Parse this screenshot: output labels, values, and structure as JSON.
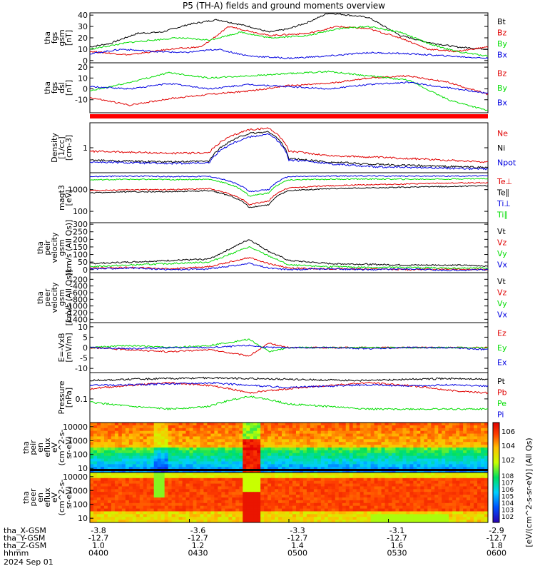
{
  "title": "P5 (TH-A) fields and ground moments overview",
  "colors": {
    "black": "#000000",
    "red": "#e00000",
    "green": "#00dd00",
    "blue": "#0000e0"
  },
  "chart_data": [
    {
      "type": "line",
      "id": "fgs-gsm",
      "ylabel": [
        "tha",
        "fgs",
        "gsm",
        "[nT]"
      ],
      "yticks": [
        "40",
        "30",
        "20",
        "10",
        "0"
      ],
      "ylim": [
        -2,
        42
      ],
      "series": [
        {
          "name": "Bt",
          "color": "black",
          "x": [
            0,
            5,
            12,
            18,
            25,
            32,
            40,
            45,
            50,
            55,
            60,
            70,
            78,
            85,
            92,
            100
          ],
          "y": [
            12,
            15,
            24,
            25,
            32,
            36,
            30,
            25,
            28,
            34,
            42,
            38,
            22,
            16,
            12,
            10
          ]
        },
        {
          "name": "Bz",
          "color": "red",
          "x": [
            0,
            10,
            20,
            28,
            35,
            45,
            55,
            62,
            70,
            78,
            85,
            92,
            100
          ],
          "y": [
            8,
            5,
            10,
            12,
            30,
            22,
            24,
            30,
            28,
            20,
            10,
            8,
            12
          ]
        },
        {
          "name": "By",
          "color": "green",
          "x": [
            0,
            10,
            22,
            30,
            38,
            45,
            55,
            62,
            70,
            78,
            85,
            92,
            100
          ],
          "y": [
            10,
            16,
            20,
            18,
            25,
            20,
            22,
            28,
            30,
            25,
            15,
            8,
            4
          ]
        },
        {
          "name": "Bx",
          "color": "blue",
          "x": [
            0,
            8,
            16,
            24,
            32,
            40,
            50,
            60,
            70,
            80,
            90,
            100
          ],
          "y": [
            6,
            10,
            8,
            7,
            10,
            4,
            2,
            4,
            7,
            6,
            4,
            2
          ]
        }
      ]
    },
    {
      "type": "line",
      "id": "fgs-dsl",
      "ylabel": [
        "tha",
        "fgs",
        "dsl",
        "[nT]"
      ],
      "yticks": [
        "20",
        "10",
        "0",
        "-10"
      ],
      "ylim": [
        -22,
        24
      ],
      "series": [
        {
          "name": "Bz",
          "color": "red",
          "x": [
            0,
            10,
            20,
            30,
            40,
            50,
            60,
            70,
            80,
            90,
            100
          ],
          "y": [
            -8,
            -15,
            -9,
            -5,
            -2,
            3,
            5,
            10,
            12,
            6,
            -5
          ]
        },
        {
          "name": "By",
          "color": "green",
          "x": [
            0,
            10,
            20,
            30,
            40,
            50,
            60,
            70,
            80,
            90,
            100
          ],
          "y": [
            -2,
            6,
            15,
            10,
            12,
            14,
            16,
            12,
            8,
            -10,
            -20
          ]
        },
        {
          "name": "Bx",
          "color": "blue",
          "x": [
            0,
            10,
            20,
            30,
            40,
            50,
            60,
            70,
            80,
            90,
            100
          ],
          "y": [
            2,
            0,
            5,
            0,
            4,
            2,
            0,
            4,
            6,
            1,
            -4
          ]
        }
      ]
    },
    {
      "type": "line",
      "id": "density",
      "ylabel": [
        "Density",
        "[1/cc]",
        "[cm-3]"
      ],
      "yticks": [
        "1"
      ],
      "scale": "log",
      "ylim": [
        0.2,
        5
      ],
      "series": [
        {
          "name": "Ne",
          "color": "red",
          "x": [
            0,
            10,
            20,
            30,
            40,
            45,
            50,
            55,
            60,
            70,
            80,
            90,
            100
          ],
          "y": [
            0.8,
            0.75,
            0.7,
            0.72,
            3.2,
            3.5,
            0.8,
            0.7,
            0.6,
            0.55,
            0.5,
            0.45,
            0.4
          ]
        },
        {
          "name": "Ni",
          "color": "black",
          "x": [
            0,
            10,
            20,
            30,
            40,
            45,
            50,
            55,
            60,
            70,
            80,
            90,
            100
          ],
          "y": [
            0.45,
            0.42,
            0.4,
            0.42,
            2.5,
            2.8,
            0.5,
            0.45,
            0.4,
            0.35,
            0.32,
            0.3,
            0.28
          ]
        },
        {
          "name": "Npot",
          "color": "blue",
          "x": [
            0,
            10,
            20,
            30,
            40,
            45,
            50,
            55,
            60,
            70,
            80,
            90,
            100
          ],
          "y": [
            0.4,
            0.38,
            0.36,
            0.38,
            2.0,
            2.4,
            0.45,
            0.42,
            0.36,
            0.3,
            0.28,
            0.27,
            0.25
          ]
        }
      ]
    },
    {
      "type": "line",
      "id": "temperature",
      "ylabel": [
        "magt3",
        "[eV]"
      ],
      "yticks": [
        "1000",
        "100"
      ],
      "scale": "log",
      "ylim": [
        30,
        6000
      ],
      "series": [
        {
          "name": "Te⊥",
          "color": "red",
          "x": [
            0,
            10,
            20,
            30,
            40,
            45,
            50,
            60,
            70,
            80,
            90,
            100
          ],
          "y": [
            900,
            1000,
            1000,
            1100,
            200,
            300,
            1200,
            1500,
            1700,
            1800,
            2000,
            2100
          ]
        },
        {
          "name": "Te∥",
          "color": "black",
          "x": [
            0,
            10,
            20,
            30,
            40,
            45,
            50,
            60,
            70,
            80,
            90,
            100
          ],
          "y": [
            700,
            800,
            800,
            900,
            150,
            200,
            900,
            1100,
            1200,
            1300,
            1400,
            1500
          ]
        },
        {
          "name": "Ti⊥",
          "color": "blue",
          "x": [
            0,
            10,
            20,
            30,
            40,
            45,
            50,
            60,
            70,
            80,
            90,
            100
          ],
          "y": [
            4000,
            4200,
            4000,
            4100,
            800,
            1000,
            4000,
            4200,
            4300,
            4200,
            4200,
            4300
          ]
        },
        {
          "name": "Ti∥",
          "color": "green",
          "x": [
            0,
            10,
            20,
            30,
            40,
            45,
            50,
            60,
            70,
            80,
            90,
            100
          ],
          "y": [
            2800,
            3000,
            2900,
            3000,
            500,
            700,
            2800,
            3000,
            3100,
            3000,
            3100,
            3200
          ]
        }
      ]
    },
    {
      "type": "line",
      "id": "peir-velocity",
      "ylabel": [
        "tha",
        "peir",
        "velocity",
        "gsm",
        "[km/s (All Qs)]"
      ],
      "yticks": [
        "300",
        "250",
        "200",
        "150",
        "100",
        "50",
        "0"
      ],
      "ylim": [
        -20,
        310
      ],
      "series": [
        {
          "name": "Vt",
          "color": "black",
          "x": [
            0,
            10,
            20,
            30,
            40,
            45,
            50,
            60,
            70,
            80,
            90,
            100
          ],
          "y": [
            40,
            50,
            60,
            70,
            200,
            120,
            60,
            40,
            35,
            30,
            30,
            25
          ]
        },
        {
          "name": "Vz",
          "color": "red",
          "x": [
            0,
            10,
            20,
            30,
            40,
            45,
            50,
            60,
            70,
            80,
            90,
            100
          ],
          "y": [
            10,
            15,
            5,
            20,
            80,
            40,
            10,
            5,
            5,
            0,
            5,
            0
          ]
        },
        {
          "name": "Vy",
          "color": "green",
          "x": [
            0,
            10,
            20,
            30,
            40,
            45,
            50,
            60,
            70,
            80,
            90,
            100
          ],
          "y": [
            20,
            30,
            40,
            50,
            150,
            90,
            30,
            20,
            15,
            15,
            10,
            10
          ]
        },
        {
          "name": "Vx",
          "color": "blue",
          "x": [
            0,
            10,
            20,
            30,
            40,
            45,
            50,
            60,
            70,
            80,
            90,
            100
          ],
          "y": [
            5,
            10,
            0,
            5,
            40,
            10,
            0,
            5,
            0,
            5,
            -5,
            0
          ]
        }
      ]
    },
    {
      "type": "line",
      "id": "peer-velocity",
      "ylabel": [
        "tha",
        "peer",
        "velocity",
        "gsm",
        "[km/s (All Qs)]"
      ],
      "yticks": [
        "-200",
        "-400",
        "-600",
        "-800",
        "-1000",
        "-1200",
        "-1400"
      ],
      "ylim": [
        -1500,
        0
      ],
      "series": [
        {
          "name": "Vt",
          "color": "black",
          "x": [],
          "y": []
        },
        {
          "name": "Vz",
          "color": "red",
          "x": [],
          "y": []
        },
        {
          "name": "Vy",
          "color": "green",
          "x": [],
          "y": []
        },
        {
          "name": "Vx",
          "color": "blue",
          "x": [],
          "y": []
        }
      ]
    },
    {
      "type": "line",
      "id": "efield",
      "ylabel": [
        "E=-VxB",
        "[mV/m]"
      ],
      "yticks": [
        "10",
        "5",
        "0",
        "-5",
        "-10"
      ],
      "ylim": [
        -12,
        12
      ],
      "series": [
        {
          "name": "Ez",
          "color": "red",
          "x": [
            0,
            10,
            20,
            30,
            40,
            45,
            50,
            60,
            70,
            80,
            90,
            100
          ],
          "y": [
            0,
            -1,
            -2,
            -1,
            -4,
            2,
            0,
            0,
            0,
            0,
            0,
            0
          ]
        },
        {
          "name": "Ey",
          "color": "green",
          "x": [
            0,
            10,
            20,
            30,
            40,
            45,
            50,
            60,
            70,
            80,
            90,
            100
          ],
          "y": [
            0,
            1,
            0,
            1,
            4,
            -2,
            0,
            0,
            0,
            0,
            0,
            0
          ]
        },
        {
          "name": "Ex",
          "color": "blue",
          "x": [
            0,
            10,
            20,
            30,
            40,
            45,
            50,
            60,
            70,
            80,
            90,
            100
          ],
          "y": [
            0,
            -0.5,
            0,
            0,
            1,
            0,
            0,
            0,
            -0.5,
            0,
            0,
            -1
          ]
        }
      ]
    },
    {
      "type": "line",
      "id": "pressure",
      "ylabel": [
        "Pressure",
        "[nPa]"
      ],
      "yticks": [
        "0.1"
      ],
      "scale": "log",
      "ylim": [
        0.02,
        0.6
      ],
      "series": [
        {
          "name": "Pt",
          "color": "black",
          "x": [
            0,
            10,
            20,
            30,
            40,
            50,
            60,
            70,
            80,
            90,
            100
          ],
          "y": [
            0.35,
            0.38,
            0.4,
            0.42,
            0.4,
            0.38,
            0.36,
            0.35,
            0.38,
            0.4,
            0.38
          ]
        },
        {
          "name": "Pb",
          "color": "red",
          "x": [
            0,
            10,
            20,
            30,
            40,
            50,
            60,
            70,
            80,
            90,
            100
          ],
          "y": [
            0.2,
            0.25,
            0.3,
            0.25,
            0.15,
            0.2,
            0.25,
            0.3,
            0.25,
            0.18,
            0.15
          ]
        },
        {
          "name": "Pe",
          "color": "green",
          "x": [
            0,
            10,
            20,
            30,
            40,
            50,
            60,
            70,
            80,
            90,
            100
          ],
          "y": [
            0.08,
            0.06,
            0.05,
            0.06,
            0.12,
            0.07,
            0.06,
            0.05,
            0.05,
            0.05,
            0.05
          ]
        },
        {
          "name": "Pi",
          "color": "blue",
          "x": [
            0,
            10,
            20,
            30,
            40,
            50,
            60,
            70,
            80,
            90,
            100
          ],
          "y": [
            0.25,
            0.26,
            0.28,
            0.3,
            0.25,
            0.22,
            0.24,
            0.26,
            0.24,
            0.26,
            0.24
          ]
        }
      ]
    },
    {
      "type": "heatmap",
      "id": "peir-spectrogram",
      "ylabel": [
        "tha",
        "peir",
        "en",
        "eflux",
        "eV",
        "(cm^2-s-",
        "sr-eV)"
      ],
      "yticks": [
        "10000",
        "1000",
        "100",
        "10"
      ],
      "scale": "log"
    },
    {
      "type": "heatmap",
      "id": "peer-spectrogram",
      "ylabel": [
        "tha",
        "peer",
        "en",
        "eflux",
        "eV",
        "(cm^2-s-",
        "sr-eV)"
      ],
      "yticks": [
        "10000",
        "1000",
        "100",
        "10"
      ],
      "scale": "log"
    }
  ],
  "colorbar": {
    "label": "[eV/(cm^2-s-sr-eV)] (All Qs)",
    "ticks_top": [
      "10^6",
      "10^4",
      "10^2"
    ],
    "ticks_bottom": [
      "10^8",
      "10^7",
      "10^6",
      "10^5",
      "10^4",
      "10^3",
      "10^2"
    ]
  },
  "x_axis": {
    "rows": [
      {
        "label": "tha_X-GSM",
        "values": [
          "-3.8",
          "-3.6",
          "-3.3",
          "-3.1",
          "-2.9"
        ]
      },
      {
        "label": "tha_Y-GSM",
        "values": [
          "-12.7",
          "-12.7",
          "-12.7",
          "-12.7",
          "-12.7"
        ]
      },
      {
        "label": "tha_Z-GSM",
        "values": [
          "1.0",
          "1.2",
          "1.4",
          "1.6",
          "1.8"
        ]
      },
      {
        "label": "hhmm",
        "values": [
          "0400",
          "0430",
          "0500",
          "0530",
          "0600"
        ]
      }
    ],
    "date": "2024 Sep 01"
  }
}
